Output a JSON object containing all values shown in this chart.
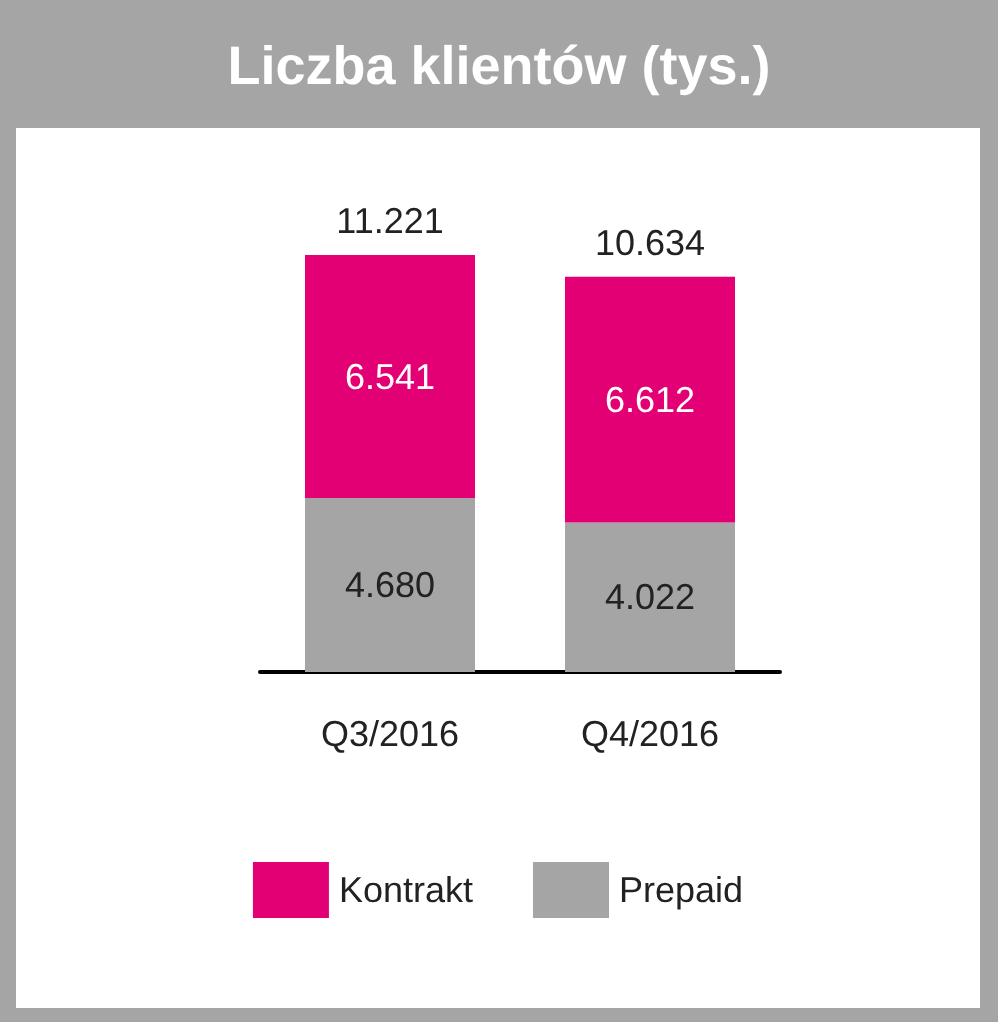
{
  "chart_data": {
    "type": "bar",
    "title": "Liczba klientów (tys.)",
    "categories": [
      "Q3/2016",
      "Q4/2016"
    ],
    "stacked": true,
    "legend": "bottom",
    "series": [
      {
        "name": "Prepaid",
        "color": "#a5a5a5",
        "values": [
          4680,
          4022
        ],
        "value_labels": [
          "4.680",
          "4.022"
        ]
      },
      {
        "name": "Kontrakt",
        "color": "#e20074",
        "values": [
          6541,
          6612
        ],
        "value_labels": [
          "6.541",
          "6.612"
        ]
      }
    ],
    "totals": [
      "11.221",
      "10.634"
    ]
  }
}
